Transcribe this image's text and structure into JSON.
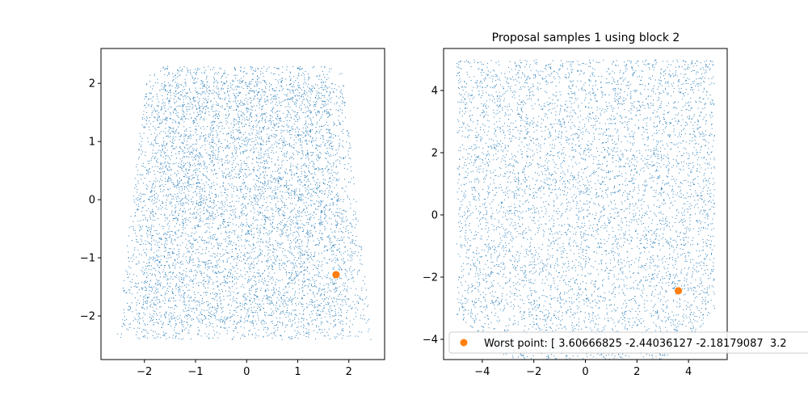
{
  "chart_data": [
    {
      "type": "scatter",
      "title": "",
      "xlabel": "",
      "ylabel": "",
      "xlim": [
        -2.85,
        2.7
      ],
      "ylim": [
        -2.75,
        2.6
      ],
      "xticks": [
        -2,
        -1,
        0,
        1,
        2
      ],
      "xtick_labels": [
        "−2",
        "−1",
        "0",
        "1",
        "2"
      ],
      "yticks": [
        -2,
        -1,
        0,
        1,
        2
      ],
      "ytick_labels": [
        "−2",
        "−1",
        "0",
        "1",
        "2"
      ],
      "grid": false,
      "series": [
        {
          "marker": "pixel",
          "color": "#1f77b4",
          "count": 7000,
          "region": {
            "y_range": [
              -2.4,
              2.3
            ],
            "x_half_width_top": 1.9,
            "x_half_width_bottom": 2.5,
            "x_center": -0.05
          }
        },
        {
          "marker": "circle",
          "color": "#ff7f0e",
          "points": [
            {
              "x": 1.75,
              "y": -1.29
            }
          ]
        }
      ]
    },
    {
      "type": "scatter",
      "title": "Proposal samples 1 using block 2",
      "xlabel": "",
      "ylabel": "",
      "xlim": [
        -5.5,
        5.5
      ],
      "ylim": [
        -4.65,
        5.35
      ],
      "xticks": [
        -4,
        -2,
        0,
        2,
        4
      ],
      "xtick_labels": [
        "−4",
        "−2",
        "0",
        "2",
        "4"
      ],
      "yticks": [
        -4,
        -2,
        0,
        2,
        4
      ],
      "ytick_labels": [
        "−4",
        "−2",
        "0",
        "2",
        "4"
      ],
      "grid": false,
      "legend": {
        "placement": "lower-right",
        "entries": [
          {
            "label": "Worst point: [ 3.60666825 -2.44036127 -2.18179087  3.2",
            "marker": "circle",
            "color": "#ff7f0e"
          }
        ]
      },
      "series": [
        {
          "marker": "pixel",
          "color": "#1f77b4",
          "count": 6000,
          "region": {
            "x_range": [
              -5.0,
              5.0
            ],
            "y_range": [
              -5.0,
              5.0
            ]
          }
        },
        {
          "marker": "circle",
          "color": "#ff7f0e",
          "points": [
            {
              "x": 3.6067,
              "y": -2.4404
            }
          ]
        }
      ]
    }
  ]
}
